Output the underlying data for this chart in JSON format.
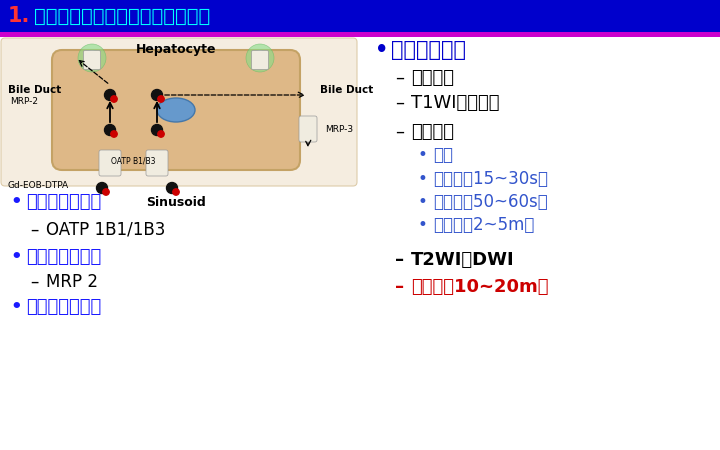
{
  "bg_color": "#ffffff",
  "header_bg": "#0000cc",
  "header_bar_color": "#cc00cc",
  "header_text_color": "#00ffff",
  "header_number_color": "#ff3333",
  "header_number": "1.",
  "header_title": "钆塞酸二钠肝内转运及其扫描技术",
  "left_bullets": [
    {
      "bullet": "•",
      "text": "血窦进入肝细胞",
      "color": "#1a1aff",
      "indent": 0,
      "size": 13,
      "bold": true
    },
    {
      "bullet": "–",
      "text": "OATP 1B1/1B3",
      "color": "#000000",
      "indent": 1,
      "size": 12,
      "bold": false
    },
    {
      "bullet": "•",
      "text": "肝细胞进入胆管",
      "color": "#1a1aff",
      "indent": 0,
      "size": 13,
      "bold": true
    },
    {
      "bullet": "–",
      "text": "MRP 2",
      "color": "#000000",
      "indent": 1,
      "size": 12,
      "bold": false
    },
    {
      "bullet": "•",
      "text": "肝细胞返回血窦",
      "color": "#1a1aff",
      "indent": 0,
      "size": 13,
      "bold": true
    }
  ],
  "right_bullets": [
    {
      "bullet": "•",
      "text": "增强扫描顺序",
      "color": "#0000cc",
      "bold": true,
      "indent": 0,
      "size": 15
    },
    {
      "bullet": "–",
      "text": "定位扫描",
      "color": "#000000",
      "bold": false,
      "indent": 1,
      "size": 13
    },
    {
      "bullet": "–",
      "text": "T1WI同反相位",
      "color": "#000000",
      "bold": false,
      "indent": 1,
      "size": 13
    },
    {
      "bullet": "–",
      "text": "多期增强",
      "color": "#000000",
      "bold": false,
      "indent": 1,
      "size": 13
    },
    {
      "bullet": "•",
      "text": "蒙片",
      "color": "#3355cc",
      "bold": false,
      "indent": 2,
      "size": 12
    },
    {
      "bullet": "•",
      "text": "动脉期（15~30s）",
      "color": "#3355cc",
      "bold": false,
      "indent": 2,
      "size": 12
    },
    {
      "bullet": "•",
      "text": "门脉期（50~60s）",
      "color": "#3355cc",
      "bold": false,
      "indent": 2,
      "size": 12
    },
    {
      "bullet": "•",
      "text": "过渡期（2~5m）",
      "color": "#3355cc",
      "bold": false,
      "indent": 2,
      "size": 12
    },
    {
      "bullet": "–",
      "text": "T2WI、DWI",
      "color": "#000000",
      "bold": true,
      "indent": 1,
      "size": 13
    },
    {
      "bullet": "–",
      "text": "肝胆期（10~20m）",
      "color": "#cc0000",
      "bold": true,
      "indent": 1,
      "size": 13
    }
  ],
  "diagram": {
    "sinusoid_bg": "#f5ede0",
    "hepatocyte_bg": "#deb887",
    "hepatocyte_edge": "#c4a265",
    "nucleus_color": "#6699cc",
    "green_glow": "#aaffaa",
    "green_inner": "#ddffdd",
    "transporter_color": "#f0ece0",
    "transporter_edge": "#999999",
    "dot_black": "#111111",
    "dot_red": "#cc0000"
  }
}
